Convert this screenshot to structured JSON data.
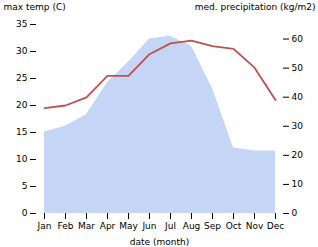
{
  "chart_data": {
    "type": "line",
    "categories": [
      "Jan",
      "Feb",
      "Mar",
      "Apr",
      "May",
      "Jun",
      "Jul",
      "Aug",
      "Sep",
      "Oct",
      "Nov",
      "Dec"
    ],
    "xlabel": "date (month)",
    "ylabel": "max temp (C)",
    "y2label": "med. precipitation (kg/m2)",
    "ylim": [
      0,
      35
    ],
    "yticks": [
      0,
      5,
      10,
      15,
      20,
      25,
      30,
      35
    ],
    "y2lim": [
      0,
      65
    ],
    "y2ticks": [
      0,
      10,
      20,
      30,
      40,
      50,
      60
    ],
    "grid": false,
    "series": [
      {
        "type": "area",
        "axis": "y2",
        "color": "#c5d5f5",
        "values": [
          28.0,
          30.0,
          34.0,
          45.0,
          52.0,
          60.0,
          61.0,
          57.5,
          43.0,
          22.5,
          21.5,
          21.5
        ]
      },
      {
        "type": "line",
        "color": "#c0504d",
        "values": [
          19.5,
          20.0,
          21.5,
          25.5,
          25.5,
          29.5,
          31.5,
          32.0,
          31.0,
          30.5,
          27.0,
          21.0
        ]
      }
    ]
  }
}
